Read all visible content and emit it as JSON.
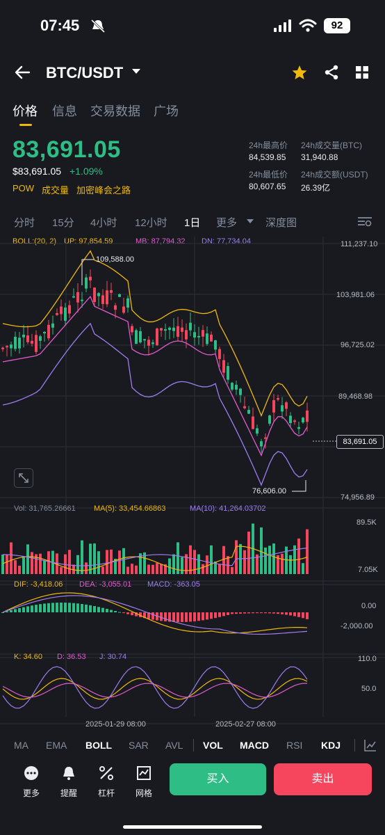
{
  "status_bar": {
    "time": "07:45",
    "battery": "92"
  },
  "header": {
    "pair": "BTC/USDT"
  },
  "tabs": [
    "价格",
    "信息",
    "交易数据",
    "广场"
  ],
  "ticker": {
    "last_price": "83,691.05",
    "price_usd": "$83,691.05",
    "change": "+1.09%",
    "tags": [
      "POW",
      "成交量",
      "加密峰会之路"
    ],
    "stats": [
      {
        "label": "24h最高价",
        "value": "84,539.85"
      },
      {
        "label": "24h成交量(BTC)",
        "value": "31,940.88"
      },
      {
        "label": "24h最低价",
        "value": "80,607.65"
      },
      {
        "label": "24h成交额(USDT)",
        "value": "26.39亿"
      }
    ]
  },
  "intervals": [
    "分时",
    "15分",
    "4小时",
    "12小时",
    "1日",
    "更多",
    "深度图"
  ],
  "active_interval": "1日",
  "boll": {
    "label": "BOLL:(20, 2)",
    "up": "UP: 97,854.59",
    "mb": "MB: 87,794.32",
    "dn": "DN: 77,734.04"
  },
  "price_axis": [
    "111,237.10",
    "103,981.06",
    "96,725.02",
    "89,468.98",
    "74,956.89"
  ],
  "price_marker": "83,691.05",
  "high_marker": "109,588.00",
  "low_marker": "76,606.00",
  "volume": {
    "vol": "Vol: 31,765.26661",
    "ma5": "MA(5): 33,454.66863",
    "ma10": "MA(10): 41,264.03702",
    "axis_top": "89.5K",
    "axis_bottom": "7.05K"
  },
  "macd": {
    "dif": "DIF: -3,418.06",
    "dea": "DEA: -3,055.01",
    "macd": "MACD: -363.05",
    "axis_top": "0.00",
    "axis_bottom": "-2,000.00"
  },
  "kdj": {
    "k": "K: 34.60",
    "d": "D: 36.53",
    "j": "J: 30.74",
    "axis_top": "110.0",
    "axis_mid": "50.0"
  },
  "dates": [
    "2025-01-29 08:00",
    "2025-02-27 08:00"
  ],
  "bottom_indicators": [
    "MA",
    "EMA",
    "BOLL",
    "SAR",
    "AVL",
    "VOL",
    "MACD",
    "RSI",
    "KDJ"
  ],
  "bottom_nav": [
    "更多",
    "提醒",
    "杠杆",
    "网格"
  ],
  "actions": {
    "buy": "买入",
    "sell": "卖出"
  },
  "colors": {
    "up": "#2ebd85",
    "down": "#f6465d",
    "accent": "#f0b90b",
    "background": "#181a20"
  }
}
